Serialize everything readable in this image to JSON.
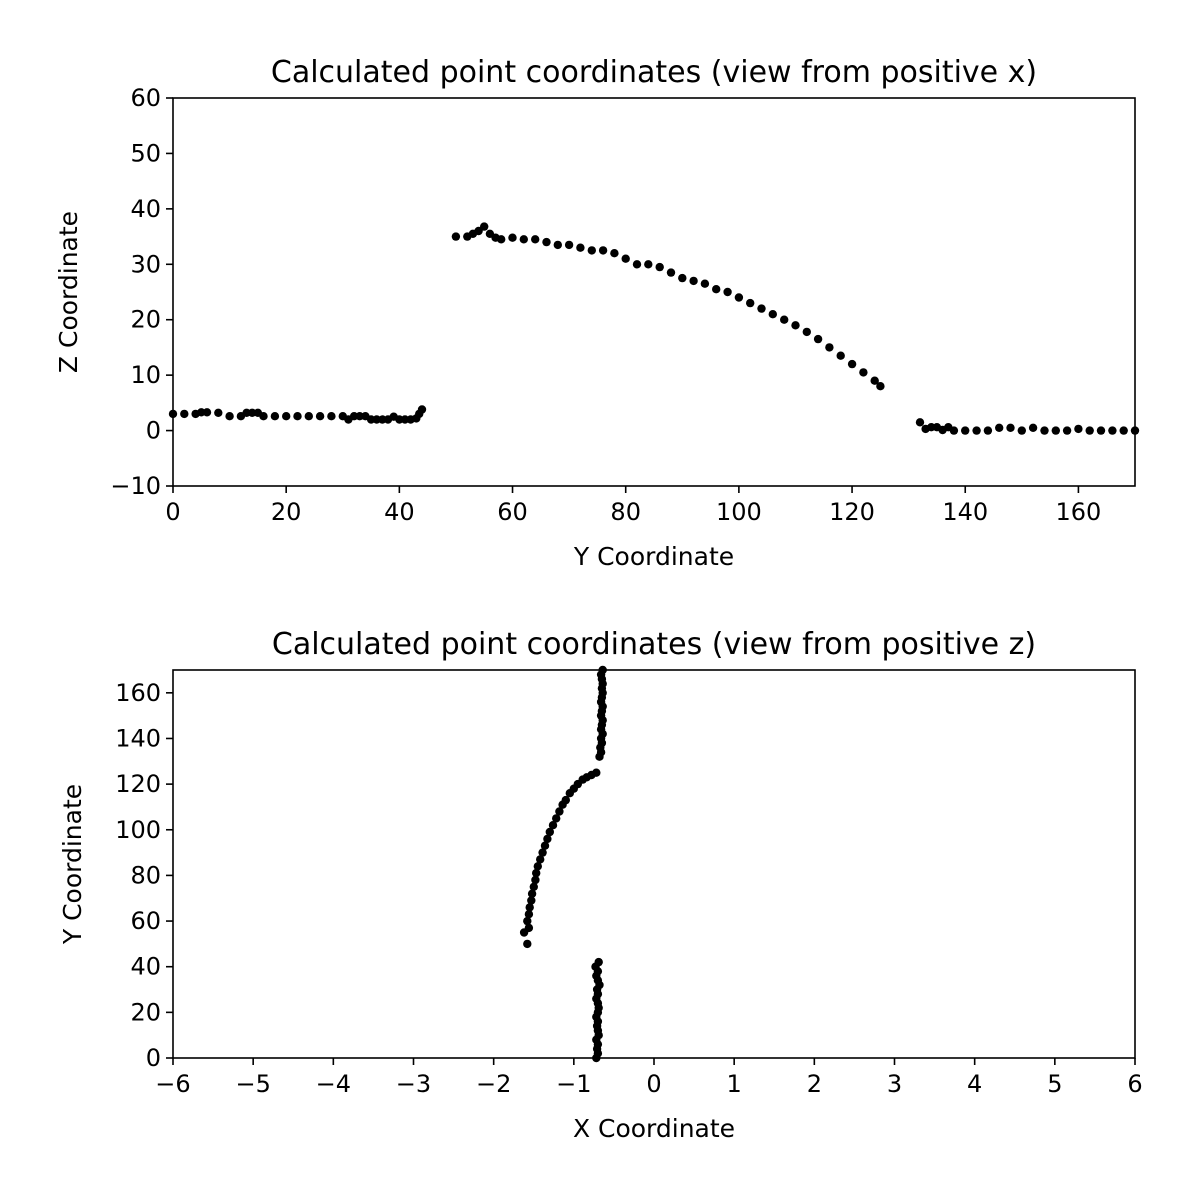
{
  "chart_data": [
    {
      "type": "scatter",
      "title": "Calculated point coordinates (view from positive x)",
      "xlabel": "Y Coordinate",
      "ylabel": "Z Coordinate",
      "xlim": [
        0,
        170
      ],
      "ylim": [
        -10,
        60
      ],
      "xticks": [
        0,
        20,
        40,
        60,
        80,
        100,
        120,
        140,
        160
      ],
      "yticks": [
        -10,
        0,
        10,
        20,
        30,
        40,
        50,
        60
      ],
      "xtick_labels": [
        "0",
        "20",
        "40",
        "60",
        "80",
        "100",
        "120",
        "140",
        "160"
      ],
      "ytick_labels": [
        "−10",
        "0",
        "10",
        "20",
        "30",
        "40",
        "50",
        "60"
      ],
      "grid": false,
      "marker_color": "#000000",
      "series": [
        {
          "x": [
            0,
            2,
            4,
            5,
            6,
            8,
            10,
            12,
            13,
            14,
            15,
            16,
            18,
            20,
            22,
            24,
            26,
            28,
            30,
            31,
            32,
            33,
            34,
            35,
            36,
            37,
            38,
            39,
            40,
            41,
            42,
            43,
            43.5,
            44
          ],
          "y": [
            3,
            3,
            3,
            3.3,
            3.3,
            3.2,
            2.6,
            2.6,
            3.2,
            3.2,
            3.2,
            2.6,
            2.6,
            2.6,
            2.6,
            2.6,
            2.6,
            2.6,
            2.6,
            2,
            2.6,
            2.6,
            2.6,
            2,
            2,
            2,
            2,
            2.5,
            2,
            2,
            2,
            2.2,
            3,
            3.8
          ]
        },
        {
          "x": [
            50,
            52,
            53,
            54,
            55,
            56,
            57,
            58,
            60,
            62,
            64,
            66,
            68,
            70,
            72,
            74,
            76,
            78,
            80,
            82,
            84,
            86,
            88,
            90,
            92,
            94,
            96,
            98,
            100,
            102,
            104,
            106,
            108,
            110,
            112,
            114,
            116,
            118,
            120,
            122,
            124,
            125
          ],
          "y": [
            35,
            35,
            35.5,
            36,
            36.8,
            35.5,
            34.8,
            34.5,
            34.8,
            34.5,
            34.5,
            34,
            33.5,
            33.5,
            33,
            32.5,
            32.5,
            32,
            31,
            30,
            30,
            29.5,
            28.5,
            27.5,
            27,
            26.5,
            25.5,
            25,
            24,
            23,
            22,
            21,
            20,
            19,
            17.8,
            16.5,
            15,
            13.5,
            12,
            10.5,
            9,
            8
          ]
        },
        {
          "x": [
            132,
            133,
            134,
            135,
            136,
            137,
            138,
            140,
            142,
            144,
            146,
            148,
            150,
            152,
            154,
            156,
            158,
            160,
            162,
            164,
            166,
            168,
            170
          ],
          "y": [
            1.5,
            0.3,
            0.6,
            0.6,
            0.1,
            0.6,
            0,
            0,
            0,
            0,
            0.5,
            0.5,
            0,
            0.5,
            0,
            0,
            0,
            0.3,
            0,
            0,
            0,
            0,
            0
          ]
        }
      ]
    },
    {
      "type": "scatter",
      "title": "Calculated point coordinates (view from positive z)",
      "xlabel": "X Coordinate",
      "ylabel": "Y Coordinate",
      "xlim": [
        -6,
        6
      ],
      "ylim": [
        0,
        170
      ],
      "xticks": [
        -6,
        -5,
        -4,
        -3,
        -2,
        -1,
        0,
        1,
        2,
        3,
        4,
        5,
        6
      ],
      "yticks": [
        0,
        20,
        40,
        60,
        80,
        100,
        120,
        140,
        160
      ],
      "xtick_labels": [
        "−6",
        "−5",
        "−4",
        "−3",
        "−2",
        "−1",
        "0",
        "1",
        "2",
        "3",
        "4",
        "5",
        "6"
      ],
      "ytick_labels": [
        "0",
        "20",
        "40",
        "60",
        "80",
        "100",
        "120",
        "140",
        "160"
      ],
      "grid": false,
      "marker_color": "#000000",
      "series": [
        {
          "x": [
            -0.72,
            -0.7,
            -0.71,
            -0.7,
            -0.72,
            -0.69,
            -0.7,
            -0.71,
            -0.7,
            -0.72,
            -0.7,
            -0.69,
            -0.7,
            -0.72,
            -0.7,
            -0.71,
            -0.68,
            -0.7,
            -0.72,
            -0.7,
            -0.73,
            -0.69
          ],
          "y": [
            0,
            2,
            4,
            6,
            8,
            10,
            12,
            14,
            16,
            18,
            20,
            22,
            24,
            26,
            28,
            30,
            32,
            34,
            36,
            38,
            40,
            42
          ]
        },
        {
          "x": [
            -1.58,
            -1.62,
            -1.56,
            -1.58,
            -1.56,
            -1.55,
            -1.53,
            -1.52,
            -1.5,
            -1.48,
            -1.47,
            -1.45,
            -1.42,
            -1.39,
            -1.36,
            -1.33,
            -1.3,
            -1.26,
            -1.22,
            -1.18,
            -1.14,
            -1.1,
            -1.05,
            -1.0,
            -0.95,
            -0.89,
            -0.84,
            -0.78,
            -0.72
          ],
          "y": [
            50,
            55,
            57,
            60,
            63,
            66,
            69,
            72,
            75,
            78,
            81,
            84,
            87,
            90,
            93,
            96,
            99,
            102,
            105,
            108,
            111,
            113,
            116,
            118,
            120,
            122,
            123,
            124,
            125
          ]
        },
        {
          "x": [
            -0.68,
            -0.66,
            -0.67,
            -0.65,
            -0.66,
            -0.64,
            -0.66,
            -0.65,
            -0.64,
            -0.66,
            -0.65,
            -0.64,
            -0.66,
            -0.65,
            -0.64,
            -0.65,
            -0.64,
            -0.65,
            -0.66,
            -0.64
          ],
          "y": [
            132,
            134,
            136,
            138,
            140,
            142,
            144,
            146,
            148,
            150,
            152,
            154,
            156,
            158,
            160,
            162,
            164,
            166,
            168,
            170
          ]
        }
      ]
    }
  ]
}
